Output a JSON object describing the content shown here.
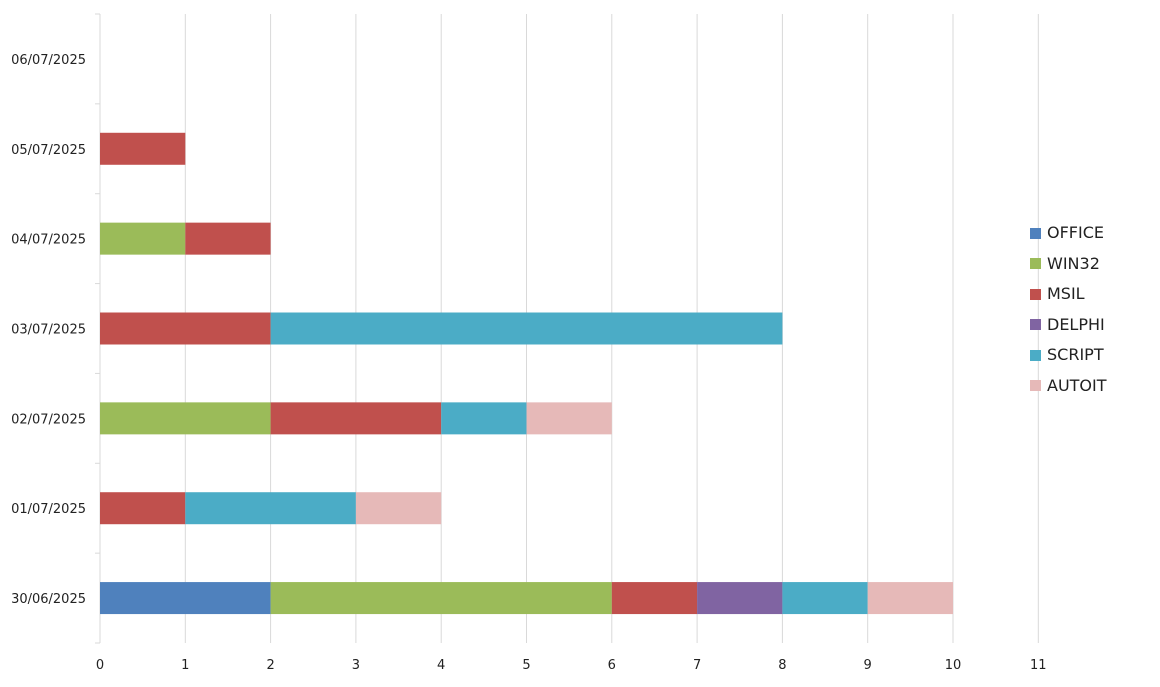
{
  "chart_data": {
    "type": "bar",
    "orientation": "horizontal",
    "stacked": true,
    "title": "",
    "xlabel": "",
    "ylabel": "",
    "categories": [
      "30/06/2025",
      "01/07/2025",
      "02/07/2025",
      "03/07/2025",
      "04/07/2025",
      "05/07/2025",
      "06/07/2025"
    ],
    "series": [
      {
        "name": "OFFICE",
        "color": "#4f81bd",
        "values": [
          2,
          0,
          0,
          0,
          0,
          0,
          0
        ]
      },
      {
        "name": "WIN32",
        "color": "#9bbb59",
        "values": [
          4,
          0,
          2,
          0,
          1,
          0,
          0
        ]
      },
      {
        "name": "MSIL",
        "color": "#c0504d",
        "values": [
          1,
          1,
          2,
          2,
          1,
          1,
          0
        ]
      },
      {
        "name": "DELPHI",
        "color": "#8064a2",
        "values": [
          1,
          0,
          0,
          0,
          0,
          0,
          0
        ]
      },
      {
        "name": "SCRIPT",
        "color": "#4bacc6",
        "values": [
          1,
          2,
          1,
          6,
          0,
          0,
          0
        ]
      },
      {
        "name": "AUTOIT",
        "color": "#e6b9b8",
        "values": [
          1,
          1,
          1,
          0,
          0,
          0,
          0
        ]
      }
    ],
    "xlim": [
      0,
      11
    ],
    "xticks": [
      "0",
      "1",
      "2",
      "3",
      "4",
      "5",
      "6",
      "7",
      "8",
      "9",
      "10",
      "11"
    ],
    "grid": "vertical",
    "legend_position": "right"
  }
}
